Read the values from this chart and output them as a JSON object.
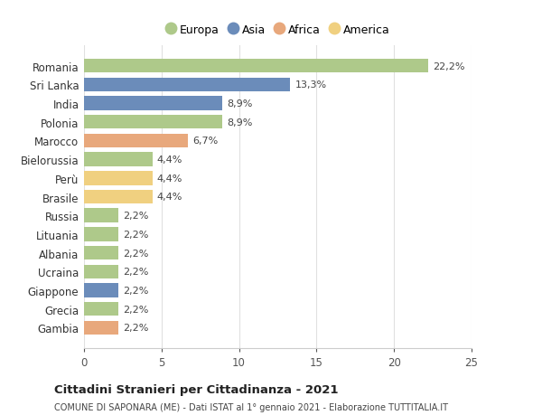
{
  "countries": [
    "Romania",
    "Sri Lanka",
    "India",
    "Polonia",
    "Marocco",
    "Bielorussia",
    "Perù",
    "Brasile",
    "Russia",
    "Lituania",
    "Albania",
    "Ucraina",
    "Giappone",
    "Grecia",
    "Gambia"
  ],
  "values": [
    22.2,
    13.3,
    8.9,
    8.9,
    6.7,
    4.4,
    4.4,
    4.4,
    2.2,
    2.2,
    2.2,
    2.2,
    2.2,
    2.2,
    2.2
  ],
  "labels": [
    "22,2%",
    "13,3%",
    "8,9%",
    "8,9%",
    "6,7%",
    "4,4%",
    "4,4%",
    "4,4%",
    "2,2%",
    "2,2%",
    "2,2%",
    "2,2%",
    "2,2%",
    "2,2%",
    "2,2%"
  ],
  "continents": [
    "Europa",
    "Asia",
    "Asia",
    "Europa",
    "Africa",
    "Europa",
    "America",
    "America",
    "Europa",
    "Europa",
    "Europa",
    "Europa",
    "Asia",
    "Europa",
    "Africa"
  ],
  "colors": {
    "Europa": "#aec98a",
    "Asia": "#6b8cba",
    "Africa": "#e8a87c",
    "America": "#f0d080"
  },
  "legend_order": [
    "Europa",
    "Asia",
    "Africa",
    "America"
  ],
  "xlim": [
    0,
    25
  ],
  "xticks": [
    0,
    5,
    10,
    15,
    20,
    25
  ],
  "title": "Cittadini Stranieri per Cittadinanza - 2021",
  "subtitle": "COMUNE DI SAPONARA (ME) - Dati ISTAT al 1° gennaio 2021 - Elaborazione TUTTITALIA.IT",
  "background_color": "#ffffff",
  "grid_color": "#e0e0e0"
}
